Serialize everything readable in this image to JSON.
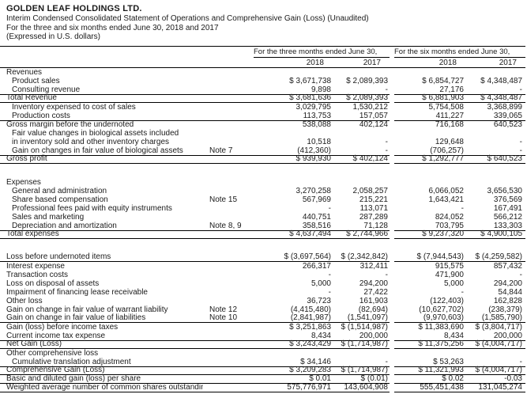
{
  "document": {
    "company": "GOLDEN LEAF HOLDINGS LTD.",
    "title_lines": [
      "Interim Condensed Consolidated Statement of Operations and Comprehensive Gain (Loss) (Unaudited)",
      "For the three and six months ended June 30, 2018 and 2017",
      "(Expressed in U.S. dollars)"
    ]
  },
  "table": {
    "groups": [
      {
        "header": "For the three months ended June 30,",
        "cols": [
          "2018",
          "2017"
        ]
      },
      {
        "header": "For the six months ended June 30,",
        "cols": [
          "2018",
          "2017"
        ]
      }
    ],
    "rows": [
      {
        "label": "Revenues",
        "indent": 0,
        "note": "",
        "values": [
          "",
          "",
          "",
          ""
        ],
        "border": ""
      },
      {
        "label": "Product sales",
        "indent": 1,
        "note": "",
        "values": [
          "$ 3,671,738",
          "$ 2,089,393",
          "$ 6,854,727",
          "$ 4,348,487"
        ],
        "border": ""
      },
      {
        "label": "Consulting revenue",
        "indent": 1,
        "note": "",
        "values": [
          "9,898",
          "-",
          "27,176",
          "-"
        ],
        "border": ""
      },
      {
        "label": "Total Revenue",
        "indent": 0,
        "note": "",
        "values": [
          "$ 3,681,636",
          "$ 2,089,393",
          "$ 6,881,903",
          "$ 4,348,487"
        ],
        "border": "tb"
      },
      {
        "label": "Inventory expensed to cost of sales",
        "indent": 1,
        "note": "",
        "values": [
          "3,029,795",
          "1,530,212",
          "5,754,508",
          "3,368,899"
        ],
        "border": ""
      },
      {
        "label": "Production costs",
        "indent": 1,
        "note": "",
        "values": [
          "113,753",
          "157,057",
          "411,227",
          "339,065"
        ],
        "border": ""
      },
      {
        "label": "Gross margin before the undernoted",
        "indent": 0,
        "note": "",
        "values": [
          "538,088",
          "402,124",
          "716,168",
          "640,523"
        ],
        "border": "t"
      },
      {
        "label": "Fair value changes in biological assets included",
        "indent": 1,
        "note": "",
        "values": [
          "",
          "",
          "",
          ""
        ],
        "border": ""
      },
      {
        "label": "in inventory sold and other inventory charges",
        "indent": 1,
        "note": "",
        "values": [
          "10,518",
          "-",
          "129,648",
          "-"
        ],
        "border": ""
      },
      {
        "label": "Gain on changes in fair value of biological assets",
        "indent": 1,
        "note": "Note 7",
        "values": [
          "(412,360)",
          "-",
          "(706,257)",
          "-"
        ],
        "border": ""
      },
      {
        "label": "Gross profit",
        "indent": 0,
        "note": "",
        "values": [
          "$ 939,930",
          "$ 402,124",
          "$ 1,292,777",
          "$ 640,523"
        ],
        "border": "tb"
      },
      {
        "spacer": true
      },
      {
        "label": "Expenses",
        "indent": 0,
        "note": "",
        "values": [
          "",
          "",
          "",
          ""
        ],
        "border": ""
      },
      {
        "label": "General and administration",
        "indent": 1,
        "note": "",
        "values": [
          "3,270,258",
          "2,058,257",
          "6,066,052",
          "3,656,530"
        ],
        "border": ""
      },
      {
        "label": "Share based compensation",
        "indent": 1,
        "note": "Note 15",
        "values": [
          "567,969",
          "215,221",
          "1,643,421",
          "376,569"
        ],
        "border": ""
      },
      {
        "label": "Professional fees paid with equity instruments",
        "indent": 1,
        "note": "",
        "values": [
          "-",
          "113,071",
          "-",
          "167,491"
        ],
        "border": ""
      },
      {
        "label": "Sales and marketing",
        "indent": 1,
        "note": "",
        "values": [
          "440,751",
          "287,289",
          "824,052",
          "566,212"
        ],
        "border": ""
      },
      {
        "label": "Depreciation and amortization",
        "indent": 1,
        "note": "Note 8, 9",
        "values": [
          "358,516",
          "71,128",
          "703,795",
          "133,303"
        ],
        "border": ""
      },
      {
        "label": "Total expenses",
        "indent": 0,
        "note": "",
        "values": [
          "$ 4,637,494",
          "$ 2,744,966",
          "$ 9,237,320",
          "$ 4,900,105"
        ],
        "border": "tb"
      },
      {
        "spacer": true
      },
      {
        "label": "Loss before undernoted items",
        "indent": 0,
        "note": "",
        "values": [
          "$ (3,697,564)",
          "$ (2,342,842)",
          "$ (7,944,543)",
          "$ (4,259,582)"
        ],
        "border": "b"
      },
      {
        "label": "Interest expense",
        "indent": 0,
        "note": "",
        "values": [
          "266,317",
          "312,411",
          "915,575",
          "857,432"
        ],
        "border": ""
      },
      {
        "label": "Transaction costs",
        "indent": 0,
        "note": "",
        "values": [
          "-",
          "-",
          "471,900",
          "-"
        ],
        "border": ""
      },
      {
        "label": "Loss on disposal of assets",
        "indent": 0,
        "note": "",
        "values": [
          "5,000",
          "294,200",
          "5,000",
          "294,200"
        ],
        "border": ""
      },
      {
        "label": "Impairment of financing lease receivable",
        "indent": 0,
        "note": "",
        "values": [
          "-",
          "27,422",
          "-",
          "54,844"
        ],
        "border": ""
      },
      {
        "label": "Other loss",
        "indent": 0,
        "note": "",
        "values": [
          "36,723",
          "161,903",
          "(122,403)",
          "162,828"
        ],
        "border": ""
      },
      {
        "label": "Gain on change in fair value of warrant liability",
        "indent": 0,
        "note": "Note 12",
        "values": [
          "(4,415,480)",
          "(82,694)",
          "(10,627,702)",
          "(238,379)"
        ],
        "border": ""
      },
      {
        "label": "Gain on change in fair value of liabilities",
        "indent": 0,
        "note": "Note 10",
        "values": [
          "(2,841,987)",
          "(1,541,097)",
          "(9,970,603)",
          "(1,585,790)"
        ],
        "border": "b"
      },
      {
        "label": "Gain (loss) before income taxes",
        "indent": 0,
        "note": "",
        "values": [
          "$ 3,251,863",
          "$ (1,514,987)",
          "$ 11,383,690",
          "$ (3,804,717)"
        ],
        "border": ""
      },
      {
        "label": "Current income tax expense",
        "indent": 0,
        "note": "",
        "values": [
          "8,434",
          "200,000",
          "8,434",
          "200,000"
        ],
        "border": ""
      },
      {
        "label": "Net Gain (Loss)",
        "indent": 0,
        "note": "",
        "values": [
          "$ 3,243,429",
          "$ (1,714,987)",
          "$ 11,375,256",
          "$ (4,004,717)"
        ],
        "border": "tb"
      },
      {
        "label": "Other comprehensive loss",
        "indent": 0,
        "note": "",
        "values": [
          "",
          "",
          "",
          ""
        ],
        "border": ""
      },
      {
        "label": "Cumulative translation adjustment",
        "indent": 1,
        "note": "",
        "values": [
          "$ 34,146",
          "-",
          "$ 53,263",
          "-"
        ],
        "border": ""
      },
      {
        "label": "Comprehensive Gain (Loss)",
        "indent": 0,
        "note": "",
        "values": [
          "$ 3,209,283",
          "$ (1,714,987)",
          "$ 11,321,993",
          "$ (4,004,717)"
        ],
        "border": "tb"
      },
      {
        "label": "Basic and diluted gain (loss) per share",
        "indent": 0,
        "note": "",
        "values": [
          "$ 0.01",
          "$ (0.01)",
          "$ 0.02",
          "-0.03"
        ],
        "border": "b"
      },
      {
        "label": "Weighted average number of common shares outstanding",
        "indent": 0,
        "note": "",
        "values": [
          "575,776,971",
          "143,604,908",
          "555,451,438",
          "131,045,274"
        ],
        "border": "b"
      }
    ]
  }
}
